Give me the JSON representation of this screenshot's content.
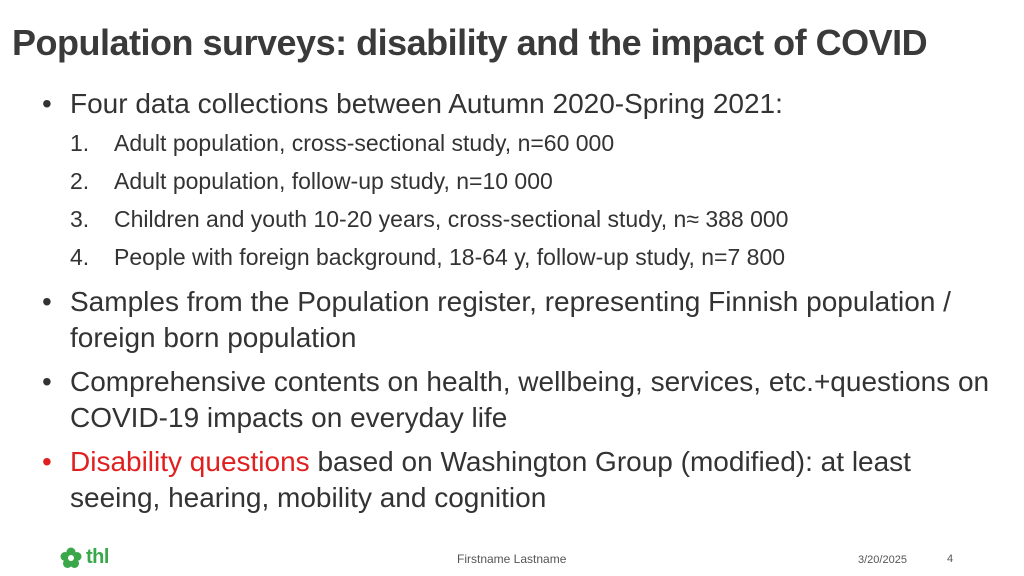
{
  "slide": {
    "title": "Population surveys: disability and the impact of COVID",
    "bullet_symbol": "•",
    "bullets": [
      {
        "text": "Four data collections between Autumn 2020-Spring 2021:",
        "subitems": [
          {
            "num": "1.",
            "text": "Adult population, cross-sectional study, n=60 000"
          },
          {
            "num": "2.",
            "text": "Adult population, follow-up study, n=10 000"
          },
          {
            "num": "3.",
            "text": "Children and youth 10-20 years, cross-sectional study, n≈ 388 000"
          },
          {
            "num": "4.",
            "text": "People with foreign background, 18-64 y, follow-up study, n=7 800"
          }
        ]
      },
      {
        "text": "Samples from the Population register, representing Finnish population / foreign born population"
      },
      {
        "text": "Comprehensive contents on health, wellbeing, services, etc.+questions on COVID-19 impacts on everyday life"
      },
      {
        "highlight": "Disability questions",
        "text": " based on Washington Group (modified): at least seeing, hearing, mobility and cognition"
      }
    ],
    "highlight_color": "#e02020"
  },
  "footer": {
    "logo_text": "thl",
    "logo_icon": "thl-flower-logo-icon",
    "author": "Firstname Lastname",
    "date": "3/20/2025",
    "page": "4"
  }
}
